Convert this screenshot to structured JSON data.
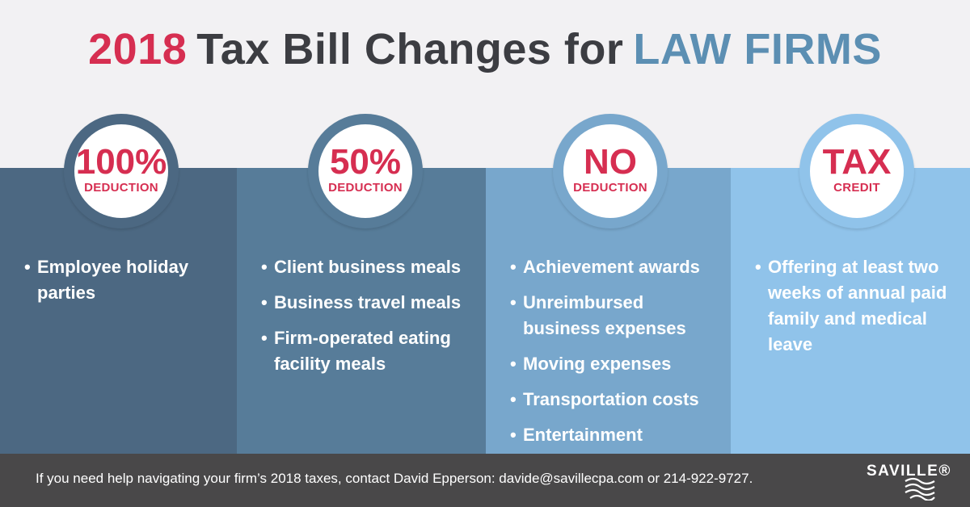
{
  "title": {
    "year": "2018",
    "middle": "Tax Bill Changes for",
    "emphasis": "LAW FIRMS"
  },
  "columns": [
    {
      "badge_big": "100%",
      "badge_small": "DEDUCTION",
      "items": [
        "Employee holiday parties"
      ]
    },
    {
      "badge_big": "50%",
      "badge_small": "DEDUCTION",
      "items": [
        "Client business meals",
        "Business travel meals",
        "Firm-operated eating facility meals"
      ]
    },
    {
      "badge_big": "NO",
      "badge_small": "DEDUCTION",
      "items": [
        "Achievement awards",
        "Unreimbursed business expenses",
        "Moving expenses",
        "Transportation costs",
        "Entertainment expenses"
      ]
    },
    {
      "badge_big": "TAX",
      "badge_small": "CREDIT",
      "items": [
        "Offering at least two weeks of annual paid family and medical leave"
      ]
    }
  ],
  "footer": {
    "message": "If you need help navigating your firm’s 2018 taxes, contact David Epperson: davide@savillecpa.com or 214-922-9727.",
    "logo_text": "SAVILLE®"
  },
  "colors": {
    "accent_red": "#d62e51",
    "title_dark": "#3c3d42",
    "title_blue": "#5c8fb3",
    "column_1": "#4c6882",
    "column_2": "#577c99",
    "column_3": "#78a7cc",
    "column_4": "#90c3ea",
    "footer": "#494849"
  }
}
